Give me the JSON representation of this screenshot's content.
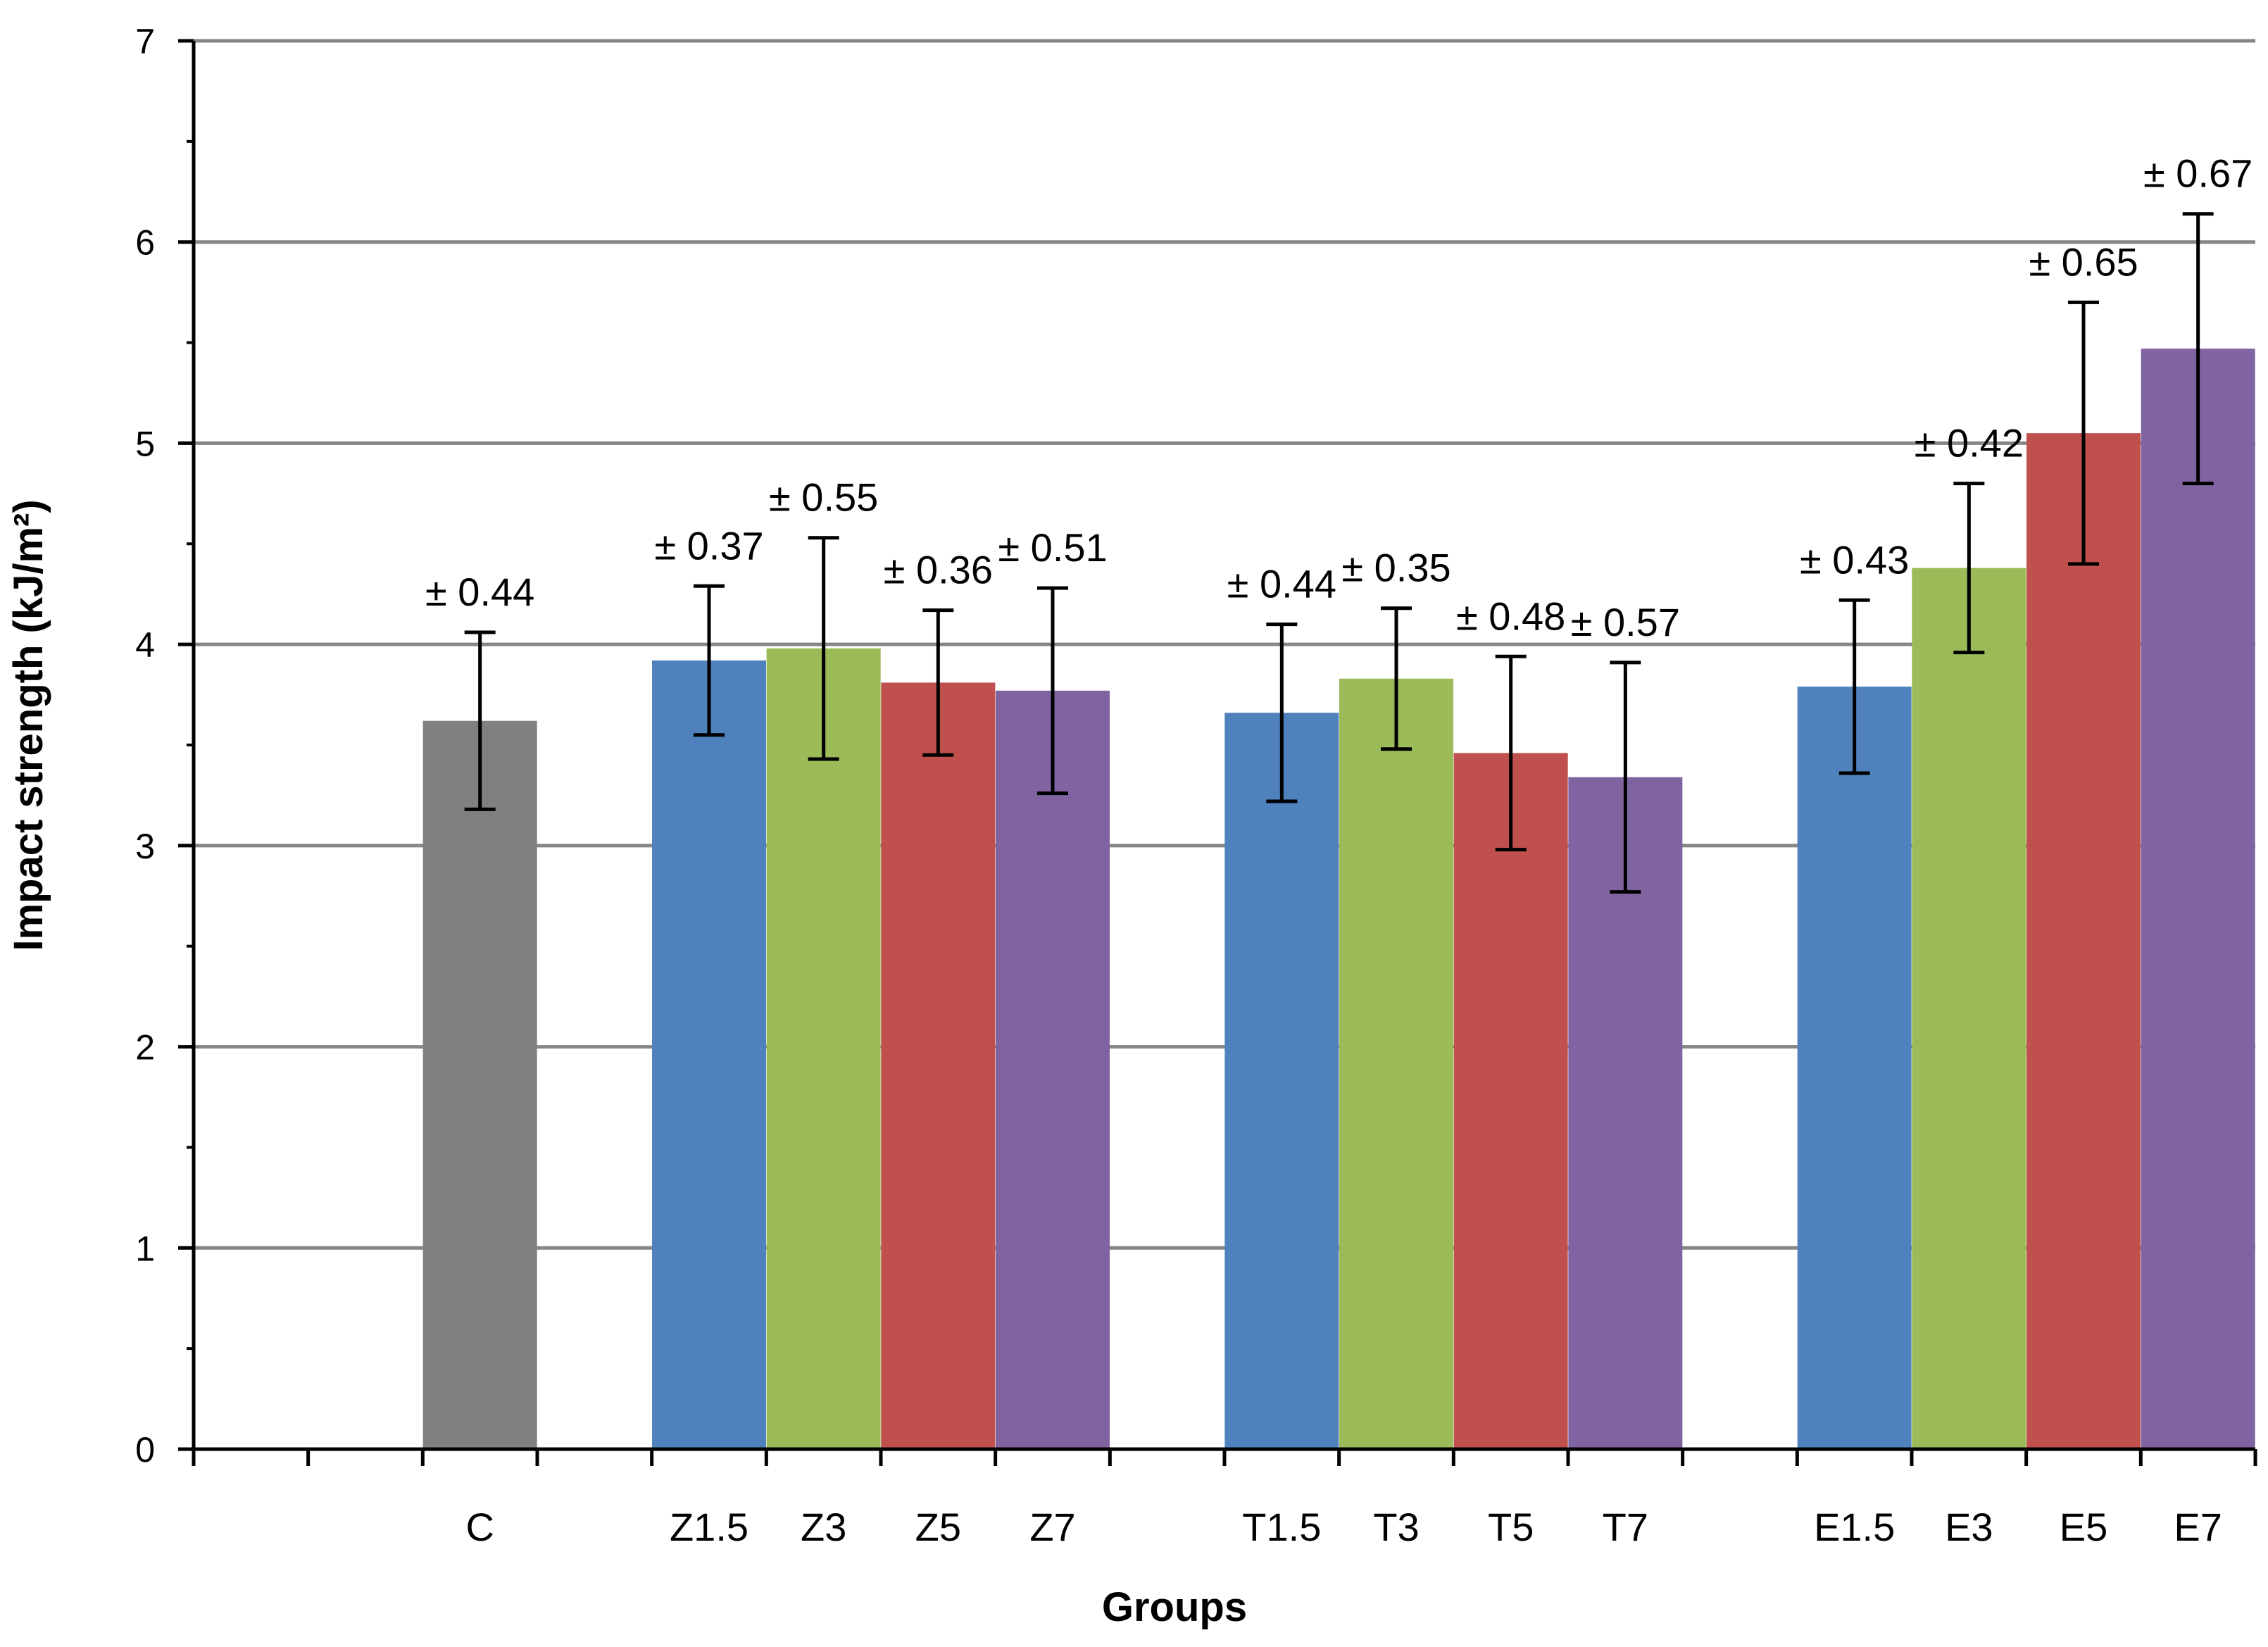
{
  "chart_data": {
    "type": "bar",
    "title": "",
    "xlabel": "Groups",
    "ylabel": "Impact strength (kJ/m²)",
    "ylim": [
      0,
      7
    ],
    "ytick_step": 1,
    "yticks": [
      "0",
      "1",
      "2",
      "3",
      "4",
      "5",
      "6",
      "7"
    ],
    "grid": true,
    "legend": "none",
    "categories": [
      "C",
      "Z1.5",
      "Z3",
      "Z5",
      "Z7",
      "T1.5",
      "T3",
      "T5",
      "T7",
      "E1.5",
      "E3",
      "E5",
      "E7"
    ],
    "values": [
      3.62,
      3.92,
      3.98,
      3.81,
      3.77,
      3.66,
      3.83,
      3.46,
      3.34,
      3.79,
      4.38,
      5.05,
      5.47
    ],
    "errors": [
      0.44,
      0.37,
      0.55,
      0.36,
      0.51,
      0.44,
      0.35,
      0.48,
      0.57,
      0.43,
      0.42,
      0.65,
      0.67
    ],
    "error_labels": [
      "± 0.44",
      "± 0.37",
      "± 0.55",
      "± 0.36",
      "± 0.51",
      "± 0.44",
      "± 0.35",
      "± 0.48",
      "± 0.57",
      "± 0.43",
      "± 0.42",
      "± 0.65",
      "± 0.67"
    ],
    "bar_colors": [
      "#808080",
      "#4F81BD",
      "#9BBB59",
      "#C0504D",
      "#8064A2",
      "#4F81BD",
      "#9BBB59",
      "#C0504D",
      "#8064A2",
      "#4F81BD",
      "#9BBB59",
      "#C0504D",
      "#8064A2"
    ],
    "grid_color": "#868686",
    "axis_color": "#000000"
  }
}
